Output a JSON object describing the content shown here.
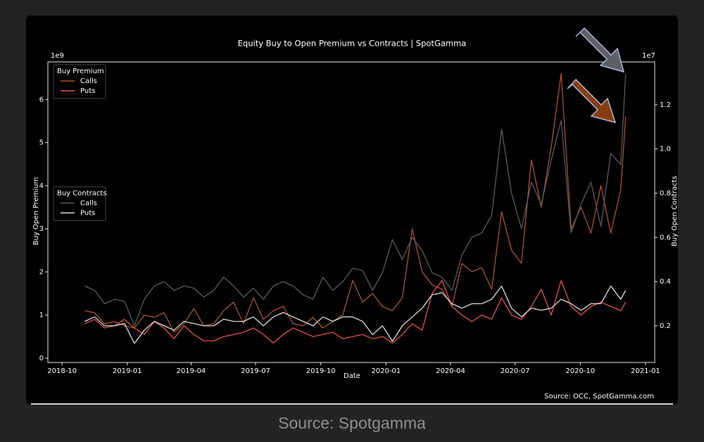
{
  "chart_data": {
    "type": "line",
    "title": "Equity Buy to Open Premium  vs Contracts | SpotGamma",
    "x_label": "Date",
    "y_label": "Buy Open Premium",
    "y2_label": "Buy Open Contracts",
    "y_offset_label": "1e9",
    "y2_offset_label": "1e7",
    "source": "Source: OCC, SpotGamma.com",
    "caption": "Source: Spotgamma",
    "xlim": [
      "2018-09-11",
      "2021-01-14"
    ],
    "xticks": [
      "2018-10",
      "2019-01",
      "2019-04",
      "2019-07",
      "2019-10",
      "2020-01",
      "2020-04",
      "2020-07",
      "2020-10",
      "2021-01"
    ],
    "ylim": [
      -0.1,
      6.87
    ],
    "yticks": [
      0,
      1,
      2,
      3,
      4,
      5,
      6
    ],
    "y2lim": [
      0.034,
      1.394
    ],
    "y2ticks": [
      0.2,
      0.4,
      0.6,
      0.8,
      {
        "value": 1.0,
        "label": "1.0"
      },
      1.2
    ],
    "grid": false,
    "x": [
      "2018-11-02",
      "2018-11-16",
      "2018-11-30",
      "2018-12-14",
      "2018-12-28",
      "2019-01-11",
      "2019-01-25",
      "2019-02-08",
      "2019-02-22",
      "2019-03-08",
      "2019-03-22",
      "2019-04-05",
      "2019-04-19",
      "2019-05-03",
      "2019-05-17",
      "2019-05-31",
      "2019-06-14",
      "2019-06-28",
      "2019-07-12",
      "2019-07-26",
      "2019-08-09",
      "2019-08-23",
      "2019-09-06",
      "2019-09-20",
      "2019-10-04",
      "2019-10-18",
      "2019-11-01",
      "2019-11-15",
      "2019-11-29",
      "2019-12-13",
      "2019-12-27",
      "2020-01-10",
      "2020-01-24",
      "2020-02-07",
      "2020-02-21",
      "2020-03-06",
      "2020-03-20",
      "2020-04-03",
      "2020-04-17",
      "2020-05-01",
      "2020-05-15",
      "2020-05-29",
      "2020-06-12",
      "2020-06-26",
      "2020-07-10",
      "2020-07-24",
      "2020-08-07",
      "2020-08-21",
      "2020-09-04",
      "2020-09-18",
      "2020-10-02",
      "2020-10-16",
      "2020-10-30",
      "2020-11-13",
      "2020-11-27",
      "2020-12-04"
    ],
    "series_groups": [
      {
        "title": "Buy Premium",
        "legend_loc": "upper left",
        "series": [
          {
            "name": "Calls",
            "color": "#a8542a",
            "axis": "y",
            "values": [
              1.1,
              1.05,
              0.8,
              0.85,
              0.75,
              0.7,
              1.0,
              0.95,
              1.05,
              0.6,
              0.8,
              1.15,
              0.75,
              0.8,
              1.1,
              1.3,
              0.8,
              1.4,
              0.9,
              1.1,
              1.2,
              0.8,
              0.75,
              0.95,
              0.7,
              0.85,
              1.0,
              1.8,
              1.3,
              1.5,
              1.2,
              1.1,
              1.4,
              3.0,
              2.0,
              1.7,
              1.6,
              1.2,
              2.2,
              2.0,
              2.1,
              1.6,
              3.4,
              2.5,
              2.2,
              4.6,
              3.5,
              4.9,
              6.6,
              3.0,
              3.5,
              2.9,
              4.0,
              2.9,
              3.9,
              5.6
            ]
          },
          {
            "name": "Puts",
            "color": "#e0533f",
            "axis": "y",
            "values": [
              0.8,
              0.9,
              0.7,
              0.75,
              0.9,
              0.7,
              0.55,
              0.85,
              0.7,
              0.45,
              0.75,
              0.55,
              0.4,
              0.4,
              0.5,
              0.55,
              0.6,
              0.7,
              0.55,
              0.35,
              0.55,
              0.7,
              0.6,
              0.5,
              0.55,
              0.6,
              0.45,
              0.5,
              0.55,
              0.45,
              0.5,
              0.35,
              0.55,
              0.8,
              0.65,
              1.5,
              1.8,
              1.2,
              1.0,
              0.85,
              1.0,
              0.9,
              1.4,
              1.0,
              0.9,
              1.2,
              1.6,
              1.0,
              1.8,
              1.2,
              1.0,
              1.2,
              1.3,
              1.2,
              1.1,
              1.3
            ]
          }
        ]
      },
      {
        "title": "Buy Contracts",
        "legend_loc": "center left",
        "series": [
          {
            "name": "Calls",
            "color": "#5a5a5a",
            "axis": "y2",
            "values": [
              0.38,
              0.36,
              0.3,
              0.32,
              0.31,
              0.2,
              0.32,
              0.38,
              0.4,
              0.36,
              0.38,
              0.37,
              0.33,
              0.36,
              0.42,
              0.38,
              0.33,
              0.37,
              0.32,
              0.38,
              0.4,
              0.38,
              0.34,
              0.32,
              0.42,
              0.36,
              0.4,
              0.46,
              0.45,
              0.36,
              0.44,
              0.59,
              0.5,
              0.6,
              0.54,
              0.44,
              0.42,
              0.36,
              0.52,
              0.6,
              0.62,
              0.7,
              1.09,
              0.8,
              0.64,
              0.85,
              0.75,
              0.95,
              1.13,
              0.62,
              0.75,
              0.85,
              0.65,
              0.98,
              0.93,
              1.34
            ]
          },
          {
            "name": "Puts",
            "color": "#dddddd",
            "axis": "y2",
            "values": [
              0.22,
              0.24,
              0.2,
              0.2,
              0.21,
              0.12,
              0.18,
              0.22,
              0.2,
              0.18,
              0.22,
              0.21,
              0.2,
              0.2,
              0.23,
              0.22,
              0.22,
              0.24,
              0.2,
              0.24,
              0.26,
              0.24,
              0.22,
              0.2,
              0.24,
              0.22,
              0.24,
              0.24,
              0.22,
              0.16,
              0.2,
              0.13,
              0.2,
              0.24,
              0.28,
              0.34,
              0.35,
              0.3,
              0.28,
              0.3,
              0.3,
              0.32,
              0.38,
              0.28,
              0.24,
              0.28,
              0.27,
              0.28,
              0.32,
              0.3,
              0.27,
              0.3,
              0.3,
              0.38,
              0.32,
              0.36
            ]
          }
        ]
      }
    ]
  }
}
